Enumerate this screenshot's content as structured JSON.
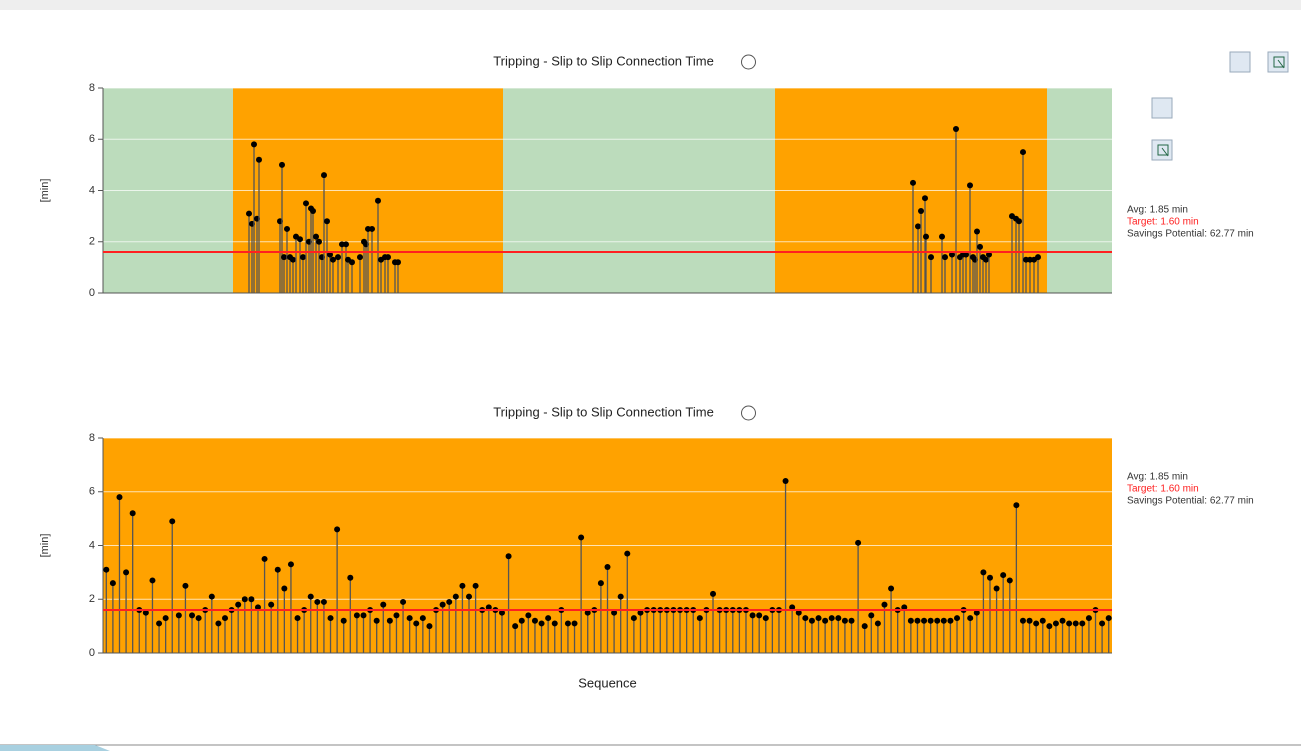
{
  "chart_data": [
    {
      "type": "stem",
      "title": "Tripping - Slip to Slip Connection Time",
      "y_label": "[min]",
      "color": "#000000",
      "stem_color": "#555555",
      "xlim": [
        0,
        1009
      ],
      "ylim": [
        0,
        8
      ],
      "yticks": [
        0,
        2,
        4,
        6,
        8
      ],
      "grid": true,
      "bands": [
        {
          "from": 0,
          "to": 130,
          "color": "#bcdcbc"
        },
        {
          "from": 130,
          "to": 400,
          "color": "#ffa200"
        },
        {
          "from": 400,
          "to": 672,
          "color": "#bcdcbc"
        },
        {
          "from": 672,
          "to": 944,
          "color": "#ffa200"
        },
        {
          "from": 944,
          "to": 1009,
          "color": "#bcdcbc"
        }
      ],
      "target_line": 1.6,
      "target_color": "#ff2020",
      "x": [
        146,
        149,
        151,
        154,
        156,
        177,
        179,
        181,
        184,
        187,
        190,
        193,
        197,
        200,
        203,
        206,
        208,
        210,
        213,
        216,
        219,
        221,
        224,
        227,
        230,
        235,
        239,
        243,
        245,
        249,
        257,
        261,
        263,
        265,
        269,
        275,
        278,
        282,
        285,
        292,
        295,
        810,
        815,
        818,
        822,
        823,
        828,
        839,
        842,
        849,
        853,
        857,
        860,
        863,
        867,
        870,
        872,
        874,
        877,
        880,
        883,
        886,
        909,
        913,
        916,
        920,
        923,
        927,
        931,
        935
      ],
      "values": [
        3.1,
        2.7,
        5.8,
        2.9,
        5.2,
        2.8,
        5.0,
        1.4,
        2.5,
        1.4,
        1.3,
        2.2,
        2.1,
        1.4,
        3.5,
        2.0,
        3.3,
        3.2,
        2.2,
        2.0,
        1.4,
        4.6,
        2.8,
        1.5,
        1.3,
        1.4,
        1.9,
        1.9,
        1.3,
        1.2,
        1.4,
        2.0,
        1.9,
        2.5,
        2.5,
        3.6,
        1.3,
        1.4,
        1.4,
        1.2,
        1.2,
        4.3,
        2.6,
        3.2,
        3.7,
        2.2,
        1.4,
        2.2,
        1.4,
        1.5,
        6.4,
        1.4,
        1.5,
        1.5,
        4.2,
        1.4,
        1.3,
        2.4,
        1.8,
        1.4,
        1.3,
        1.5,
        3.0,
        2.9,
        2.8,
        5.5,
        1.3,
        1.3,
        1.3,
        1.4
      ],
      "stats": [
        "Avg: 1.85 min",
        "Target: 1.60 min",
        "Savings Potential: 62.77 min"
      ]
    },
    {
      "type": "stem",
      "title": "Tripping - Slip to Slip Connection Time",
      "y_label": "[min]",
      "x_label": "Sequence",
      "color": "#000000",
      "stem_color": "#555555",
      "ylim": [
        0,
        8
      ],
      "yticks": [
        0,
        2,
        4,
        6,
        8
      ],
      "grid": true,
      "background": "#ffa200",
      "target_line": 1.6,
      "target_color": "#ff2020",
      "values": [
        3.1,
        2.6,
        5.8,
        3.0,
        5.2,
        1.6,
        1.5,
        2.7,
        1.1,
        1.3,
        4.9,
        1.4,
        2.5,
        1.4,
        1.3,
        1.6,
        2.1,
        1.1,
        1.3,
        1.6,
        1.8,
        2.0,
        2.0,
        1.7,
        3.5,
        1.8,
        3.1,
        2.4,
        3.3,
        1.3,
        1.6,
        2.1,
        1.9,
        1.9,
        1.3,
        4.6,
        1.2,
        2.8,
        1.4,
        1.4,
        1.6,
        1.2,
        1.8,
        1.2,
        1.4,
        1.9,
        1.3,
        1.1,
        1.3,
        1.0,
        1.6,
        1.8,
        1.9,
        2.1,
        2.5,
        2.1,
        2.5,
        1.6,
        1.7,
        1.6,
        1.5,
        3.6,
        1.0,
        1.2,
        1.4,
        1.2,
        1.1,
        1.3,
        1.1,
        1.6,
        1.1,
        1.1,
        4.3,
        1.5,
        1.6,
        2.6,
        3.2,
        1.5,
        2.1,
        3.7,
        1.3,
        1.5,
        1.6,
        1.6,
        1.6,
        1.6,
        1.6,
        1.6,
        1.6,
        1.6,
        1.3,
        1.6,
        2.2,
        1.6,
        1.6,
        1.6,
        1.6,
        1.6,
        1.4,
        1.4,
        1.3,
        1.6,
        1.6,
        6.4,
        1.7,
        1.5,
        1.3,
        1.2,
        1.3,
        1.2,
        1.3,
        1.3,
        1.2,
        1.2,
        4.1,
        1.0,
        1.4,
        1.1,
        1.8,
        2.4,
        1.6,
        1.7,
        1.2,
        1.2,
        1.2,
        1.2,
        1.2,
        1.2,
        1.2,
        1.3,
        1.6,
        1.3,
        1.5,
        3.0,
        2.8,
        2.4,
        2.9,
        2.7,
        5.5,
        1.2,
        1.2,
        1.1,
        1.2,
        1.0,
        1.1,
        1.2,
        1.1,
        1.1,
        1.1,
        1.3,
        1.6,
        1.1,
        1.3
      ],
      "stats": [
        "Avg: 1.85 min",
        "Target: 1.60 min",
        "Savings Potential: 62.77 min"
      ]
    }
  ]
}
